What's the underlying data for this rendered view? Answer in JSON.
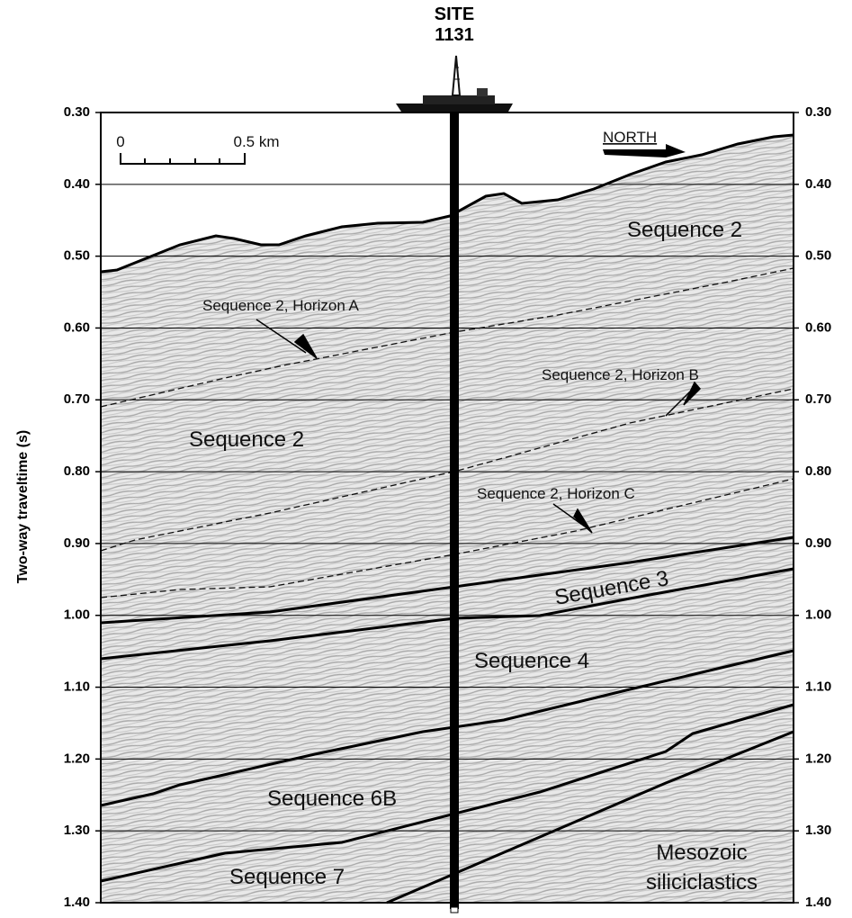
{
  "site": {
    "line1": "SITE",
    "line2": "1131"
  },
  "y_axis": {
    "title": "Two-way traveltime (s)",
    "ticks": [
      "0.30",
      "0.40",
      "0.50",
      "0.60",
      "0.70",
      "0.80",
      "0.90",
      "1.00",
      "1.10",
      "1.20",
      "1.30",
      "1.40"
    ]
  },
  "scale_bar": {
    "start": "0",
    "end": "0.5 km"
  },
  "direction": "NORTH",
  "labels": [
    "Sequence 2",
    "Sequence 2, Horizon A",
    "Sequence 2, Horizon B",
    "Sequence 2",
    "Sequence 2, Horizon C",
    "Sequence 3",
    "Sequence 4",
    "Sequence 6B",
    "Sequence 7",
    "Mesozoic",
    "siliciclastics"
  ]
}
